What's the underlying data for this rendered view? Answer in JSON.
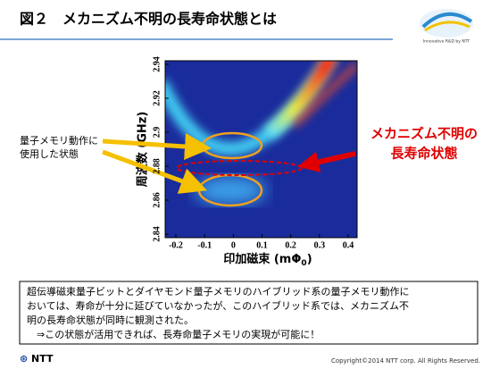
{
  "header": {
    "title": "図２　メカニズム不明の長寿命状態とは"
  },
  "logo": {
    "caption": "Innovative R&D by NTT"
  },
  "figure": {
    "y_label": "周波数 (GHz)",
    "x_label_main": "印加磁束 (mΦ",
    "x_label_sub": "0",
    "x_label_end": ")",
    "xticks": [
      -0.2,
      -0.1,
      0,
      0.1,
      0.2,
      0.3,
      0.4
    ],
    "yticks": [
      2.84,
      2.86,
      2.88,
      2.9,
      2.92,
      2.94
    ]
  },
  "callouts": {
    "left": [
      "量子メモリ動作に",
      "使用した状態"
    ],
    "right": [
      "メカニズム不明の",
      "長寿命状態"
    ]
  },
  "note": {
    "lines": [
      "超伝導磁束量子ビットとダイヤモンド量子メモリのハイブリッド系の量子メモリ動作に",
      "おいては、寿命が十分に延びていなかったが、このハイブリッド系では、メカニズム不",
      "明の長寿命状態が同時に観測された。",
      "　⇒この状態が活用できれば、長寿命量子メモリの実現が可能に！"
    ]
  },
  "footer": {
    "brand": "NTT",
    "copyright": "Copyright©2014 NTT corp. All Rights Reserved."
  }
}
